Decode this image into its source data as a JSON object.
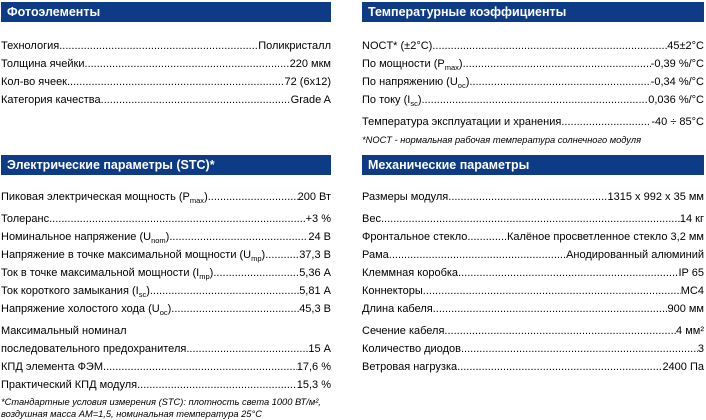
{
  "page": {
    "accent_color": "#0d3b86",
    "background_color": "#ffffff"
  },
  "sections": {
    "photo": {
      "title": "Фотоэлементы",
      "rows": [
        {
          "label": "Технология",
          "value": "Поликристалл"
        },
        {
          "label": "Толщина ячейки",
          "value": "220 мкм"
        },
        {
          "label": "Кол-во ячеек",
          "value": "72 (6x12)"
        },
        {
          "label": "Категория качества",
          "value": "Grade A"
        }
      ]
    },
    "temperature": {
      "title": "Температурные коэффициенты",
      "rows": [
        {
          "label": "NOCT* (±2°C)",
          "value": "45±2°C"
        },
        {
          "label": "По мощности (P",
          "sub": "max",
          "after": ")",
          "value": "-0,39 %/°C"
        },
        {
          "label": "По напряжению (U",
          "sub": "oc",
          "after": ")",
          "value": "-0,34 %/°C"
        },
        {
          "label": "По току (I",
          "sub": "sc",
          "after": ")",
          "value": "0,036 %/°C"
        },
        {
          "label": "Температура эксплуатации и хранения ",
          "value": "-40 ÷ 85°C"
        }
      ],
      "footnote": "*NOCT - нормальная рабочая температура солнечного модуля"
    },
    "electrical": {
      "title": "Электрические параметры (STC)*",
      "rows": [
        {
          "label": "Пиковая электрическая мощность (P",
          "sub": "max",
          "after": ")",
          "value": "200 Вт"
        },
        {
          "label": "Толеранс",
          "value": "+3 %"
        },
        {
          "label": "Номинальное напряжение (U",
          "sub": "nom",
          "after": ")",
          "value": "24 В"
        },
        {
          "label": "Напряжение в точке максимальной мощности (U",
          "sub": "mp",
          "after": ")",
          "value": "37,3 В"
        },
        {
          "label": "Ток в точке максимальной мощности (I",
          "sub": "mp",
          "after": ")",
          "value": "5,36 А"
        },
        {
          "label": "Ток короткого замыкания (I",
          "sub": "sc",
          "after": ")",
          "value": "5,81 А"
        },
        {
          "label": "Напряжение холостого хода (U",
          "sub": "oc",
          "after": ")",
          "value": "45,3 В"
        },
        {
          "label": "Максимальный номинал",
          "value": null
        },
        {
          "label": "последовательного предохранителя",
          "value": "15 А"
        },
        {
          "label": "КПД элемента ФЭМ",
          "value": "17,6 %"
        },
        {
          "label": "Практический КПД модуля",
          "value": "15,3 %"
        }
      ],
      "footnote": "*Стандартные условия измерения (STC): плотность света 1000 ВТ/м², воздушная масса АМ=1,5, номинальная температура 25°C"
    },
    "mechanical": {
      "title": "Механические параметры",
      "rows": [
        {
          "label": "Размеры модуля",
          "value": "1315 x 992 x 35 мм"
        },
        {
          "label": "Вес",
          "value": "14 кг"
        },
        {
          "label": "Фронтальное стекло",
          "value": "Калёное просветленное стекло 3,2 мм"
        },
        {
          "label": "Рама",
          "value": "Анодированный алюминий"
        },
        {
          "label": "Клеммная коробка",
          "value": "IP 65"
        },
        {
          "label": "Коннекторы",
          "value": "MC4"
        },
        {
          "label": "Длина кабеля",
          "value": "900 мм"
        },
        {
          "label": "Сечение кабеля",
          "value": "4 мм²"
        },
        {
          "label": "Количество диодов",
          "value": "3"
        },
        {
          "label": "Ветровая нагрузка",
          "value": "2400 Па"
        }
      ]
    }
  }
}
